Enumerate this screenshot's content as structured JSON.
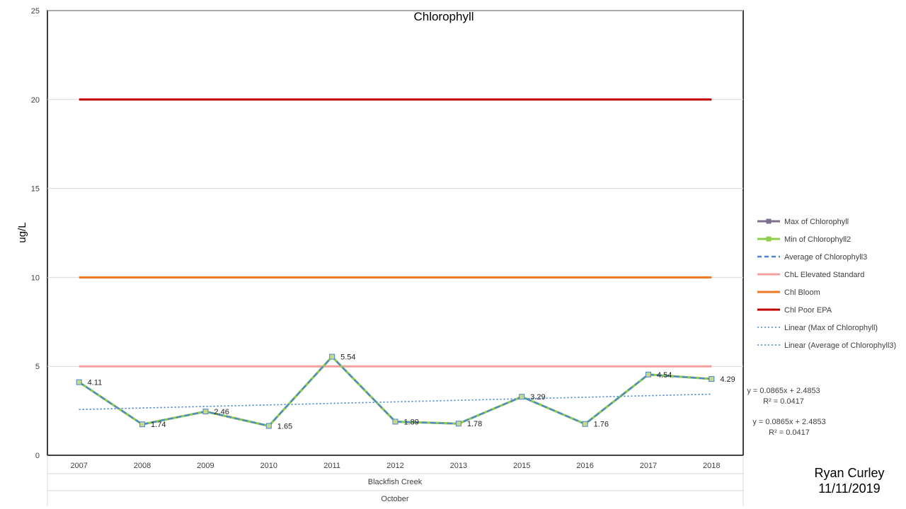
{
  "chart_data": {
    "type": "line",
    "title": "Chlorophyll",
    "ylabel": "ug/L",
    "xlabel": "",
    "group_labels": [
      "Blackfish Creek",
      "October"
    ],
    "categories": [
      "2007",
      "2008",
      "2009",
      "2010",
      "2011",
      "2012",
      "2013",
      "2015",
      "2016",
      "2017",
      "2018"
    ],
    "ylim": [
      0,
      25
    ],
    "yticks": [
      0,
      5,
      10,
      15,
      20,
      25
    ],
    "grid": true,
    "legend_position": "right",
    "series": [
      {
        "name": "Max of Chlorophyll",
        "color": "#7f6f8f",
        "style": "solid",
        "marker": "square",
        "values": [
          4.11,
          1.74,
          2.46,
          1.65,
          5.54,
          1.89,
          1.78,
          3.29,
          1.76,
          4.54,
          4.29
        ]
      },
      {
        "name": "Min of Chlorophyll2",
        "color": "#8ece4a",
        "style": "solid",
        "marker": "square",
        "values": [
          4.11,
          1.74,
          2.46,
          1.65,
          5.54,
          1.89,
          1.78,
          3.29,
          1.76,
          4.54,
          4.29
        ]
      },
      {
        "name": "Average of Chlorophyll3",
        "color": "#4a86d4",
        "style": "dashed",
        "marker": "none",
        "values": [
          4.11,
          1.74,
          2.46,
          1.65,
          5.54,
          1.89,
          1.78,
          3.29,
          1.76,
          4.54,
          4.29
        ]
      },
      {
        "name": "ChL Elevated Standard",
        "color": "#f4a0a0",
        "style": "solid",
        "marker": "none",
        "values": [
          5,
          5,
          5,
          5,
          5,
          5,
          5,
          5,
          5,
          5,
          5
        ]
      },
      {
        "name": "Chl Bloom",
        "color": "#ee7721",
        "style": "solid",
        "marker": "none",
        "values": [
          10,
          10,
          10,
          10,
          10,
          10,
          10,
          10,
          10,
          10,
          10
        ]
      },
      {
        "name": "Chl Poor EPA",
        "color": "#c00000",
        "style": "solid",
        "marker": "none",
        "values": [
          20,
          20,
          20,
          20,
          20,
          20,
          20,
          20,
          20,
          20,
          20
        ]
      }
    ],
    "data_labels": [
      "4.11",
      "1.74",
      "2.46",
      "1.65",
      "5.54",
      "1.89",
      "1.78",
      "3.29",
      "1.76",
      "4.54",
      "4.29"
    ],
    "trendlines": [
      {
        "name": "Linear (Max of Chlorophyll)",
        "color": "#4a86d4",
        "style": "dotted",
        "slope": 0.0865,
        "intercept": 2.4853,
        "equation": "y = 0.0865x + 2.4853",
        "r2": "R² = 0.0417"
      },
      {
        "name": "Linear (Average of Chlorophyll3)",
        "color": "#4a86d4",
        "style": "dotted",
        "slope": 0.0865,
        "intercept": 2.4853,
        "equation": "y = 0.0865x + 2.4853",
        "r2": "R² = 0.0417"
      }
    ]
  },
  "author": {
    "name": "Ryan Curley",
    "date": "11/11/2019"
  }
}
